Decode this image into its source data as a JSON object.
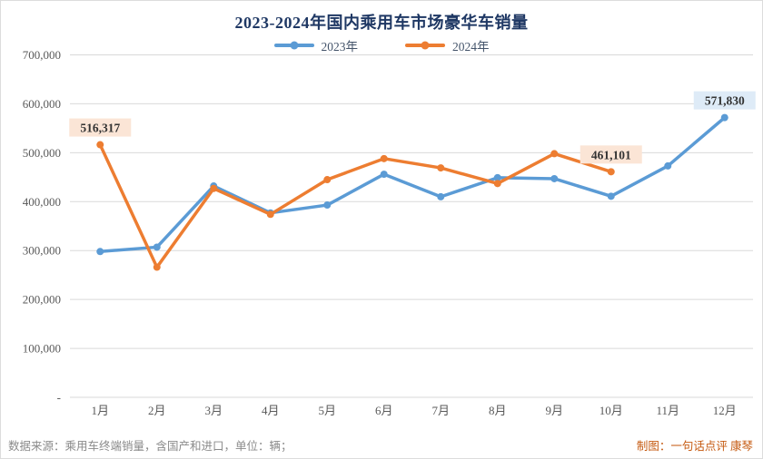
{
  "chart_data": {
    "type": "line",
    "title": "2023-2024年国内乘用车市场豪华车销量",
    "categories": [
      "1月",
      "2月",
      "3月",
      "4月",
      "5月",
      "6月",
      "7月",
      "8月",
      "9月",
      "10月",
      "11月",
      "12月"
    ],
    "series": [
      {
        "name": "2023年",
        "color": "#5B9BD5",
        "values": [
          298000,
          307000,
          432000,
          377000,
          393000,
          456000,
          410000,
          449000,
          447000,
          411000,
          473000,
          571830
        ]
      },
      {
        "name": "2024年",
        "color": "#ED7D31",
        "values": [
          516317,
          266000,
          427000,
          374000,
          445000,
          488000,
          469000,
          437000,
          498000,
          461101,
          null,
          null
        ]
      }
    ],
    "ylim": [
      0,
      700000
    ],
    "y_ticks": [
      {
        "value": 0,
        "label": "-"
      },
      {
        "value": 100000,
        "label": "100,000"
      },
      {
        "value": 200000,
        "label": "200,000"
      },
      {
        "value": 300000,
        "label": "300,000"
      },
      {
        "value": 400000,
        "label": "400,000"
      },
      {
        "value": 500000,
        "label": "500,000"
      },
      {
        "value": 600000,
        "label": "600,000"
      },
      {
        "value": 700000,
        "label": "700,000"
      }
    ],
    "grid": "horizontal",
    "legend_position": "top",
    "annotations": [
      {
        "series": 1,
        "index": 0,
        "text": "516,317",
        "bg": "#FBE5D6"
      },
      {
        "series": 1,
        "index": 9,
        "text": "461,101",
        "bg": "#FBE5D6"
      },
      {
        "series": 0,
        "index": 11,
        "text": "571,830",
        "bg": "#DEEBF7"
      }
    ]
  },
  "footer": {
    "source": "数据来源：乘用车终端销量，含国产和进口，单位：辆；",
    "credit": "制图：一句话点评  康琴"
  },
  "colors": {
    "grid": "#D9D9D9",
    "axis_text": "#595959",
    "title": "#1F3864",
    "legend_text": "#44546A",
    "footer_source": "#8A8A8A",
    "footer_credit": "#C55A11",
    "annotation_text": "#333333",
    "background": "#FFFFFF"
  }
}
